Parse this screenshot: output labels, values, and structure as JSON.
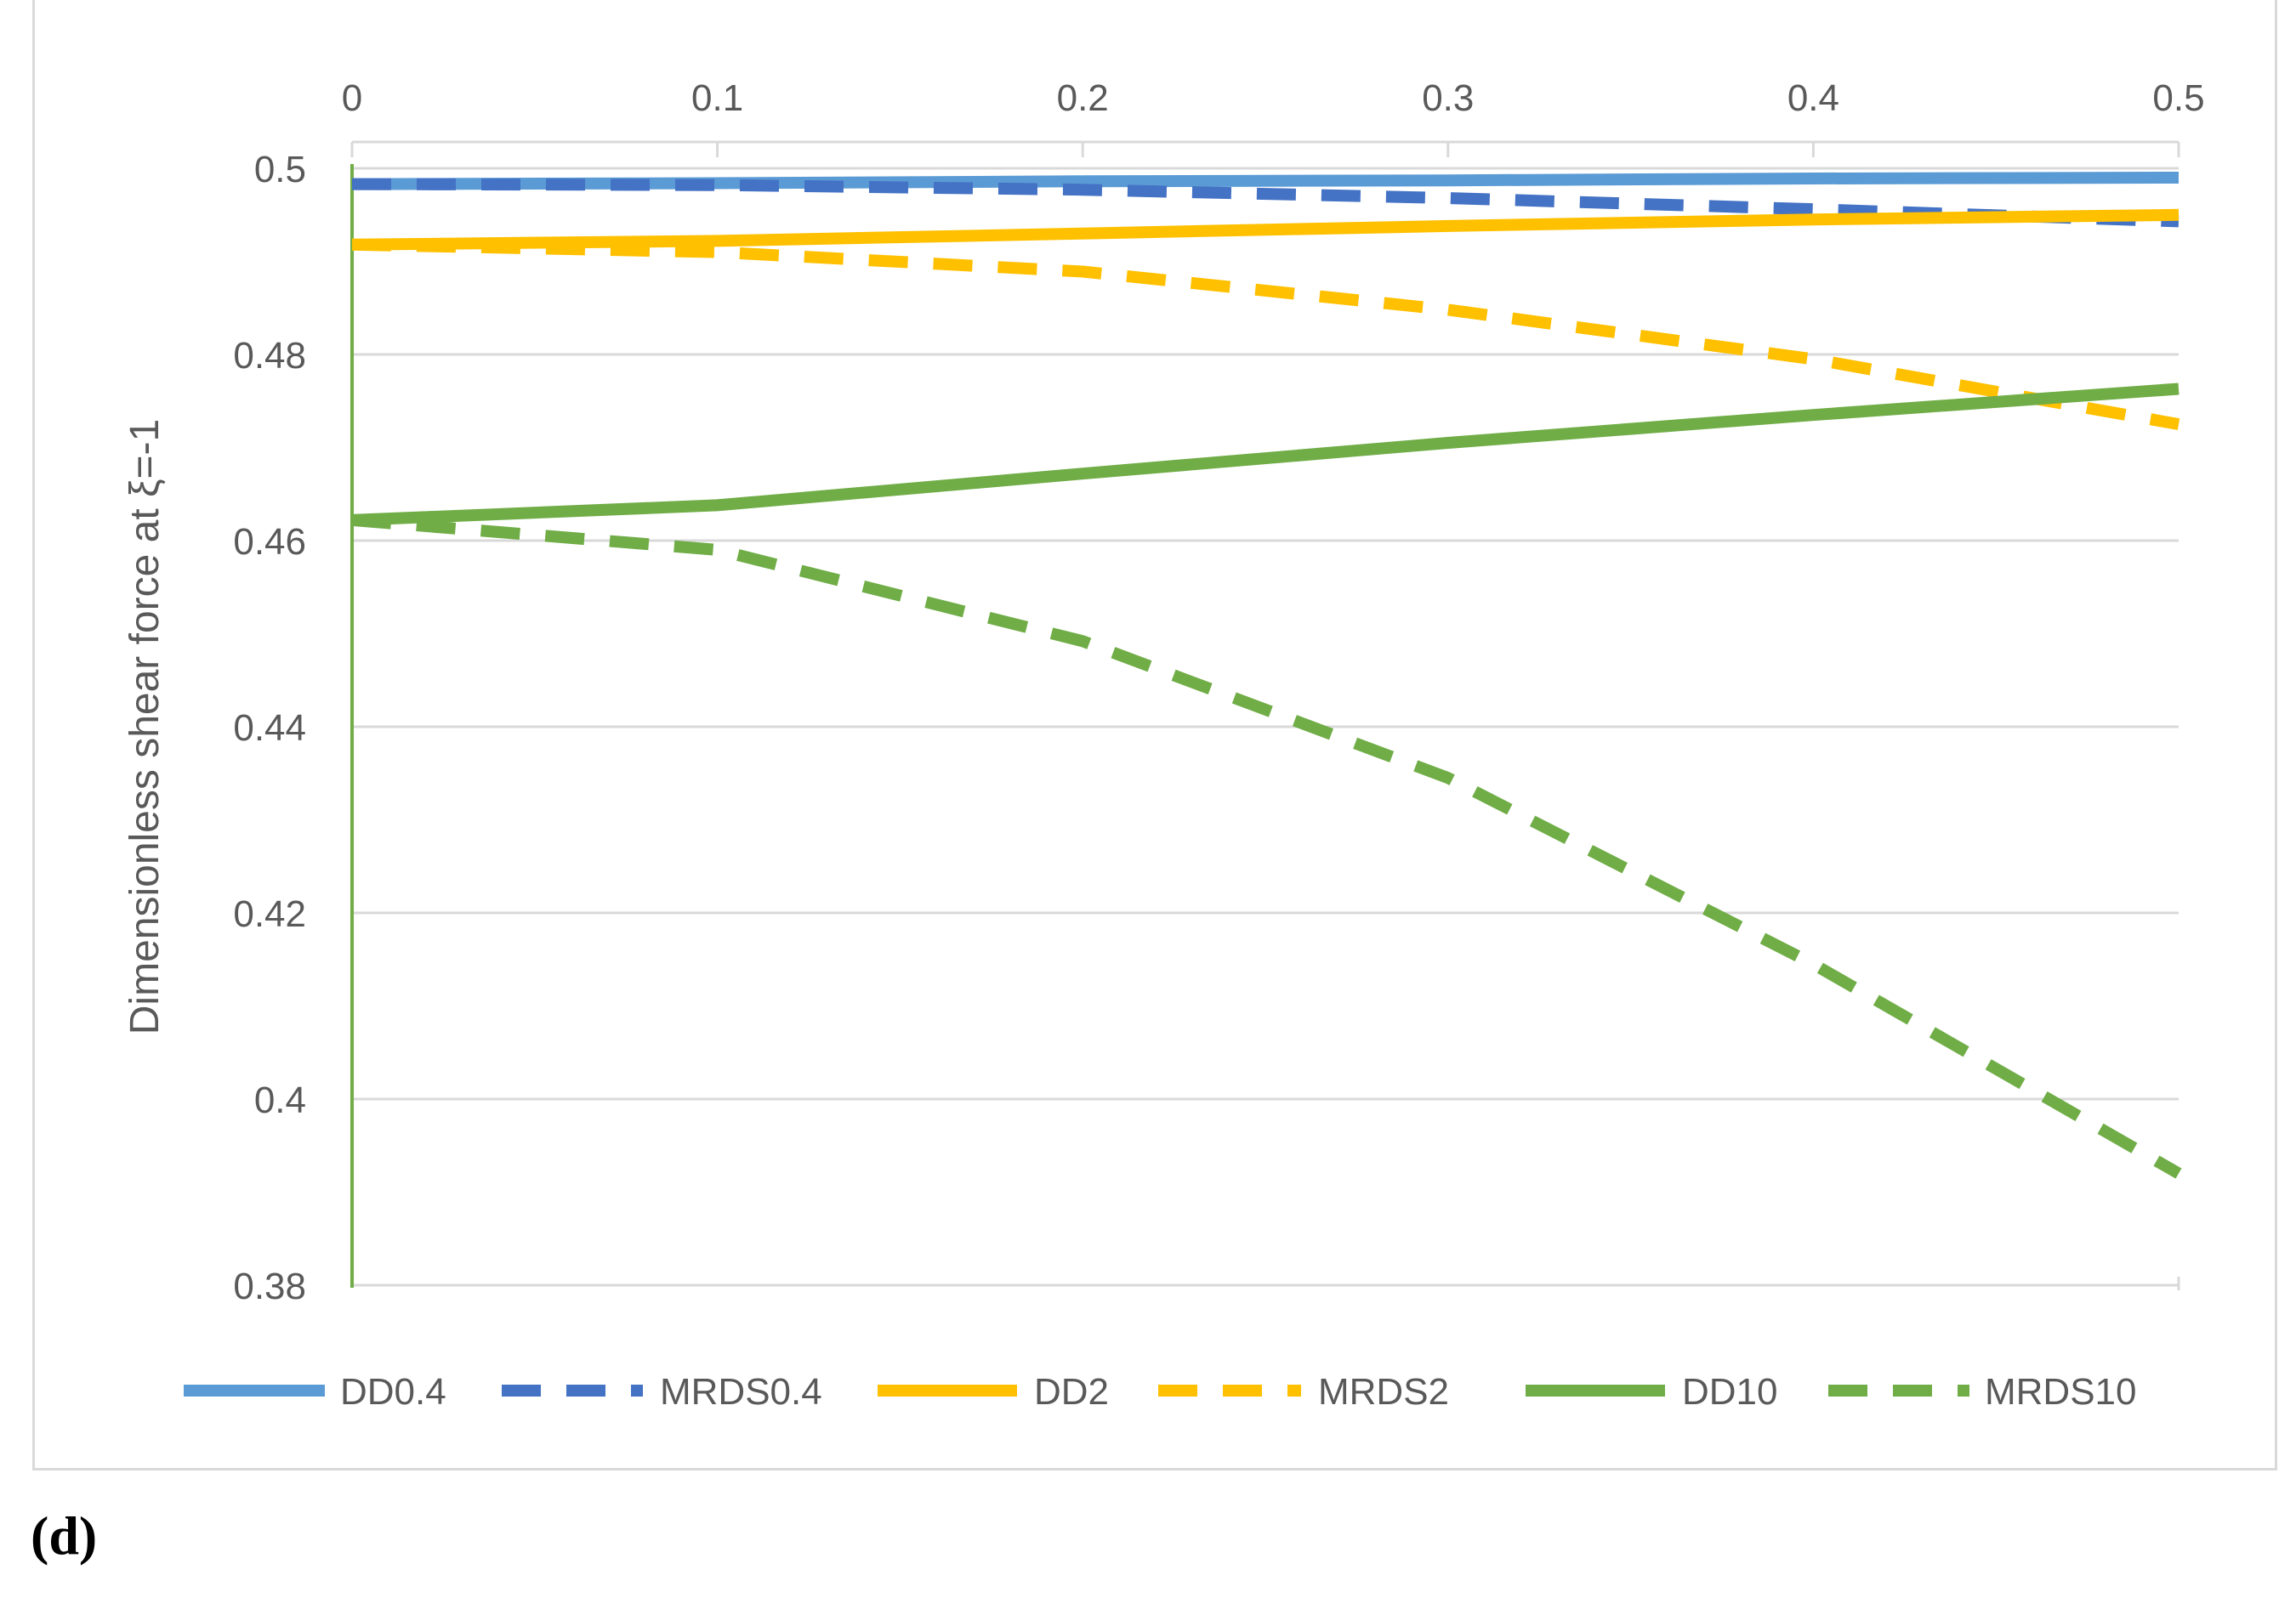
{
  "panel_label": "(d)",
  "chart_data": {
    "type": "line",
    "title": "",
    "xlabel": "",
    "ylabel": "Dimensionless shear force at ξ=-1",
    "x_axis_position": "top",
    "xlim": [
      0,
      0.5
    ],
    "ylim": [
      0.38,
      0.5
    ],
    "x_ticks": [
      "0",
      "0.1",
      "0.2",
      "0.3",
      "0.4",
      "0.5"
    ],
    "y_ticks": [
      "0.38",
      "0.4",
      "0.42",
      "0.44",
      "0.46",
      "0.48",
      "0.5"
    ],
    "grid": true,
    "legend_position": "bottom",
    "x": [
      0,
      0.1,
      0.2,
      0.3,
      0.4,
      0.5
    ],
    "series": [
      {
        "name": "DD0.4",
        "color": "#5b9bd5",
        "dash": "solid",
        "values": [
          0.4983,
          0.4984,
          0.4986,
          0.4987,
          0.4989,
          0.499
        ]
      },
      {
        "name": "MRDS0.4",
        "color": "#4472c4",
        "dash": "dashed",
        "values": [
          0.4983,
          0.4982,
          0.4977,
          0.4968,
          0.4956,
          0.4943
        ]
      },
      {
        "name": "DD2",
        "color": "#ffc000",
        "dash": "solid",
        "values": [
          0.4918,
          0.4922,
          0.493,
          0.4938,
          0.4945,
          0.495
        ]
      },
      {
        "name": "MRDS2",
        "color": "#ffc000",
        "dash": "dashed",
        "values": [
          0.4918,
          0.491,
          0.4889,
          0.4848,
          0.4795,
          0.4725
        ]
      },
      {
        "name": "DD10",
        "color": "#70ad47",
        "dash": "solid",
        "values": [
          0.4622,
          0.4638,
          0.4672,
          0.4705,
          0.4735,
          0.4763
        ]
      },
      {
        "name": "MRDS10",
        "color": "#70ad47",
        "dash": "dashed",
        "values": [
          0.4622,
          0.459,
          0.4492,
          0.4345,
          0.4145,
          0.392
        ]
      }
    ]
  }
}
